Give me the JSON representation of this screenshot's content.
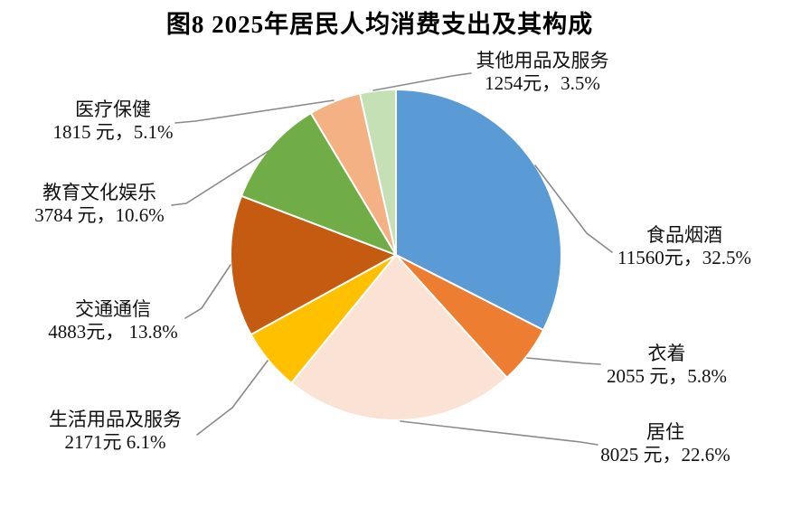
{
  "title": "图8  2025年居民人均消费支出及其构成",
  "colors": {
    "background": "#ffffff",
    "leader_line": "#8a8a8a",
    "slice_border": "#ffffff",
    "text": "#111111"
  },
  "chart_data": {
    "type": "pie",
    "title": "图8  2025年居民人均消费支出及其构成",
    "unit": "元",
    "start_angle_deg": 0,
    "direction": "clockwise",
    "legend_position": "none",
    "labels_position": "outside-with-leader-lines",
    "slices": [
      {
        "key": "food-tobacco-alcohol",
        "label": "食品烟酒",
        "value": 11560,
        "pct": 32.5,
        "value_text": "11560元，32.5%",
        "color": "#5B9BD5"
      },
      {
        "key": "clothing",
        "label": "衣着",
        "value": 2055,
        "pct": 5.8,
        "value_text": "2055 元，5.8%",
        "color": "#ED7D31"
      },
      {
        "key": "housing",
        "label": "居住",
        "value": 8025,
        "pct": 22.6,
        "value_text": "8025 元，22.6%",
        "color": "#FAE3D5"
      },
      {
        "key": "household-goods-services",
        "label": "生活用品及服务",
        "value": 2171,
        "pct": 6.1,
        "value_text": "2171元 6.1%",
        "color": "#FFC000"
      },
      {
        "key": "transport-communication",
        "label": "交通通信",
        "value": 4883,
        "pct": 13.8,
        "value_text": "4883元， 13.8%",
        "color": "#C55A11"
      },
      {
        "key": "education-culture-entertainment",
        "label": "教育文化娱乐",
        "value": 3784,
        "pct": 10.6,
        "value_text": "3784 元，10.6%",
        "color": "#70AD47"
      },
      {
        "key": "healthcare",
        "label": "医疗保健",
        "value": 1815,
        "pct": 5.1,
        "value_text": "1815 元，5.1%",
        "color": "#F4B183"
      },
      {
        "key": "other-goods-services",
        "label": "其他用品及服务",
        "value": 1254,
        "pct": 3.5,
        "value_text": "1254元，3.5%",
        "color": "#C5E0B4"
      }
    ]
  }
}
